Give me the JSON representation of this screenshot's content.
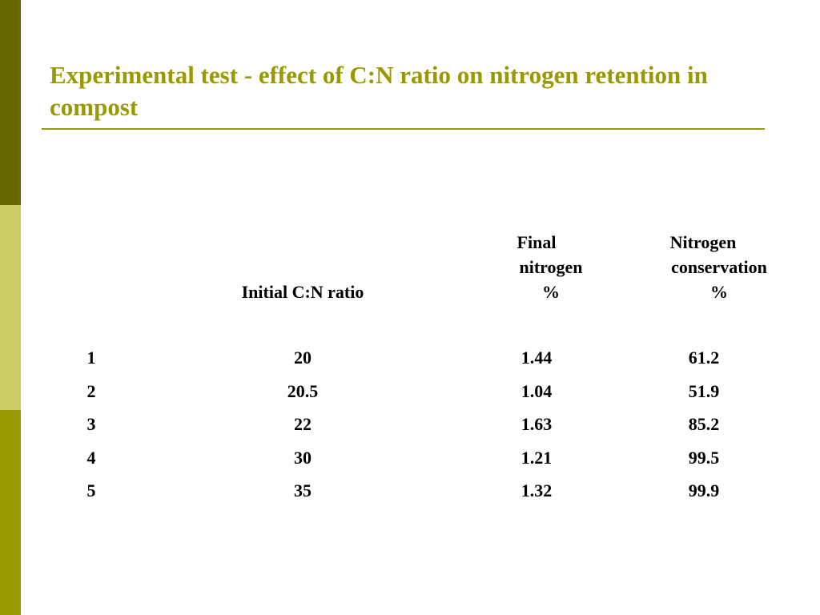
{
  "header": {
    "title": "Experimental test - effect of C:N ratio on nitrogen retention in compost"
  },
  "table": {
    "columns": [
      [
        "Initial C:N ratio"
      ],
      [
        "Final",
        "nitrogen",
        "%"
      ],
      [
        "Nitrogen",
        "conservation",
        "%"
      ]
    ],
    "rows": [
      [
        1,
        20,
        1.44,
        61.2
      ],
      [
        2,
        20.5,
        1.04,
        51.9
      ],
      [
        3,
        22,
        1.63,
        85.2
      ],
      [
        4,
        30,
        1.21,
        99.5
      ],
      [
        5,
        35,
        1.32,
        99.9
      ]
    ]
  }
}
